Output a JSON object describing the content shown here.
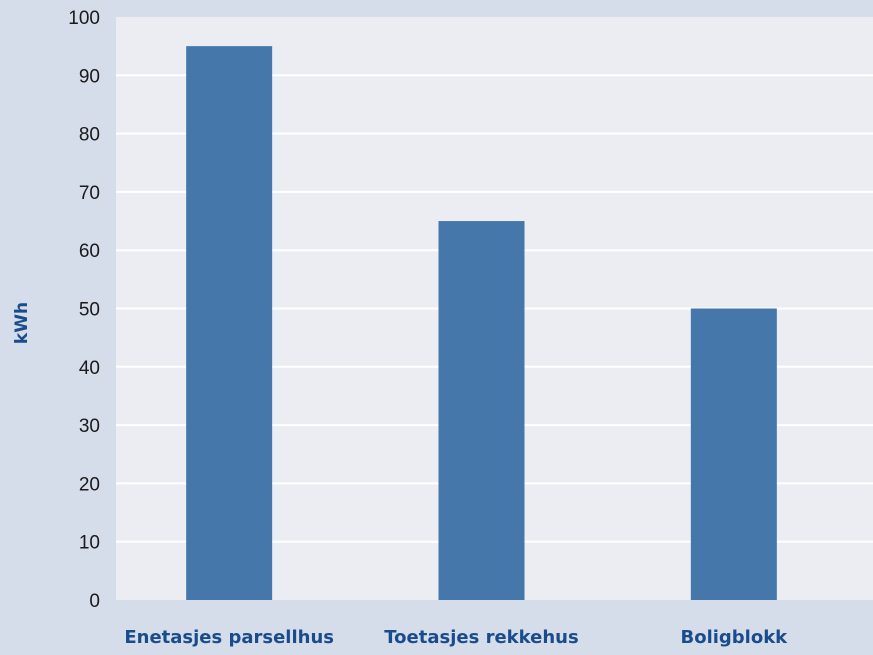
{
  "chart_data": {
    "type": "bar",
    "categories": [
      "Enetasjes parsellhus",
      "Toetasjes rekkehus",
      "Boligblokk"
    ],
    "values": [
      95,
      65,
      50
    ],
    "title": "",
    "xlabel": "",
    "ylabel": "kWh",
    "ylim": [
      0,
      100
    ],
    "yticks": [
      0,
      10,
      20,
      30,
      40,
      50,
      60,
      70,
      80,
      90,
      100
    ],
    "grid": true,
    "legend": "none",
    "colors": {
      "bar": "#4677aa",
      "plot_background": "#ecedf3",
      "page_background": "#d5dcea",
      "gridline": "#ffffff",
      "label_text": "#1a4c8c",
      "tick_text": "#1a1a1a"
    }
  }
}
